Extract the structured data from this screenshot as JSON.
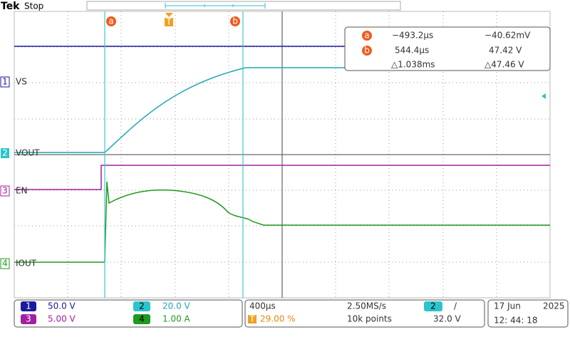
{
  "header": {
    "brand": "Tek",
    "status": "Stop"
  },
  "markers": {
    "cursor_a": "a",
    "cursor_b": "b",
    "trigger": "T"
  },
  "readout": [
    {
      "id": "a",
      "time": "−493.2µs",
      "value": "−40.62mV"
    },
    {
      "id": "b",
      "time": "544.4µs",
      "value": "47.42 V"
    },
    {
      "time": "△1.038ms",
      "value": "△47.46 V"
    }
  ],
  "channels": [
    {
      "number": "1",
      "label": "VS"
    },
    {
      "number": "2",
      "label": "VOUT"
    },
    {
      "number": "3",
      "label": "EN"
    },
    {
      "number": "4",
      "label": "IOUT"
    }
  ],
  "vertical": [
    {
      "number": "1",
      "scale": "50.0 V"
    },
    {
      "number": "2",
      "scale": "20.0 V"
    },
    {
      "number": "3",
      "scale": "5.00 V"
    },
    {
      "number": "4",
      "scale": "1.00 A"
    }
  ],
  "horizontal": {
    "timebase": "400µs",
    "sample_rate": "2.50MS/s",
    "trigger_source": "2",
    "trigger_slope": "/",
    "trigger_icon": "T",
    "trigger_position": "29.00 %",
    "record_length": "10k points",
    "trigger_level": "32.0 V"
  },
  "clock": {
    "date": "17 Jun",
    "year": "2025",
    "time": "12: 44: 18"
  }
}
